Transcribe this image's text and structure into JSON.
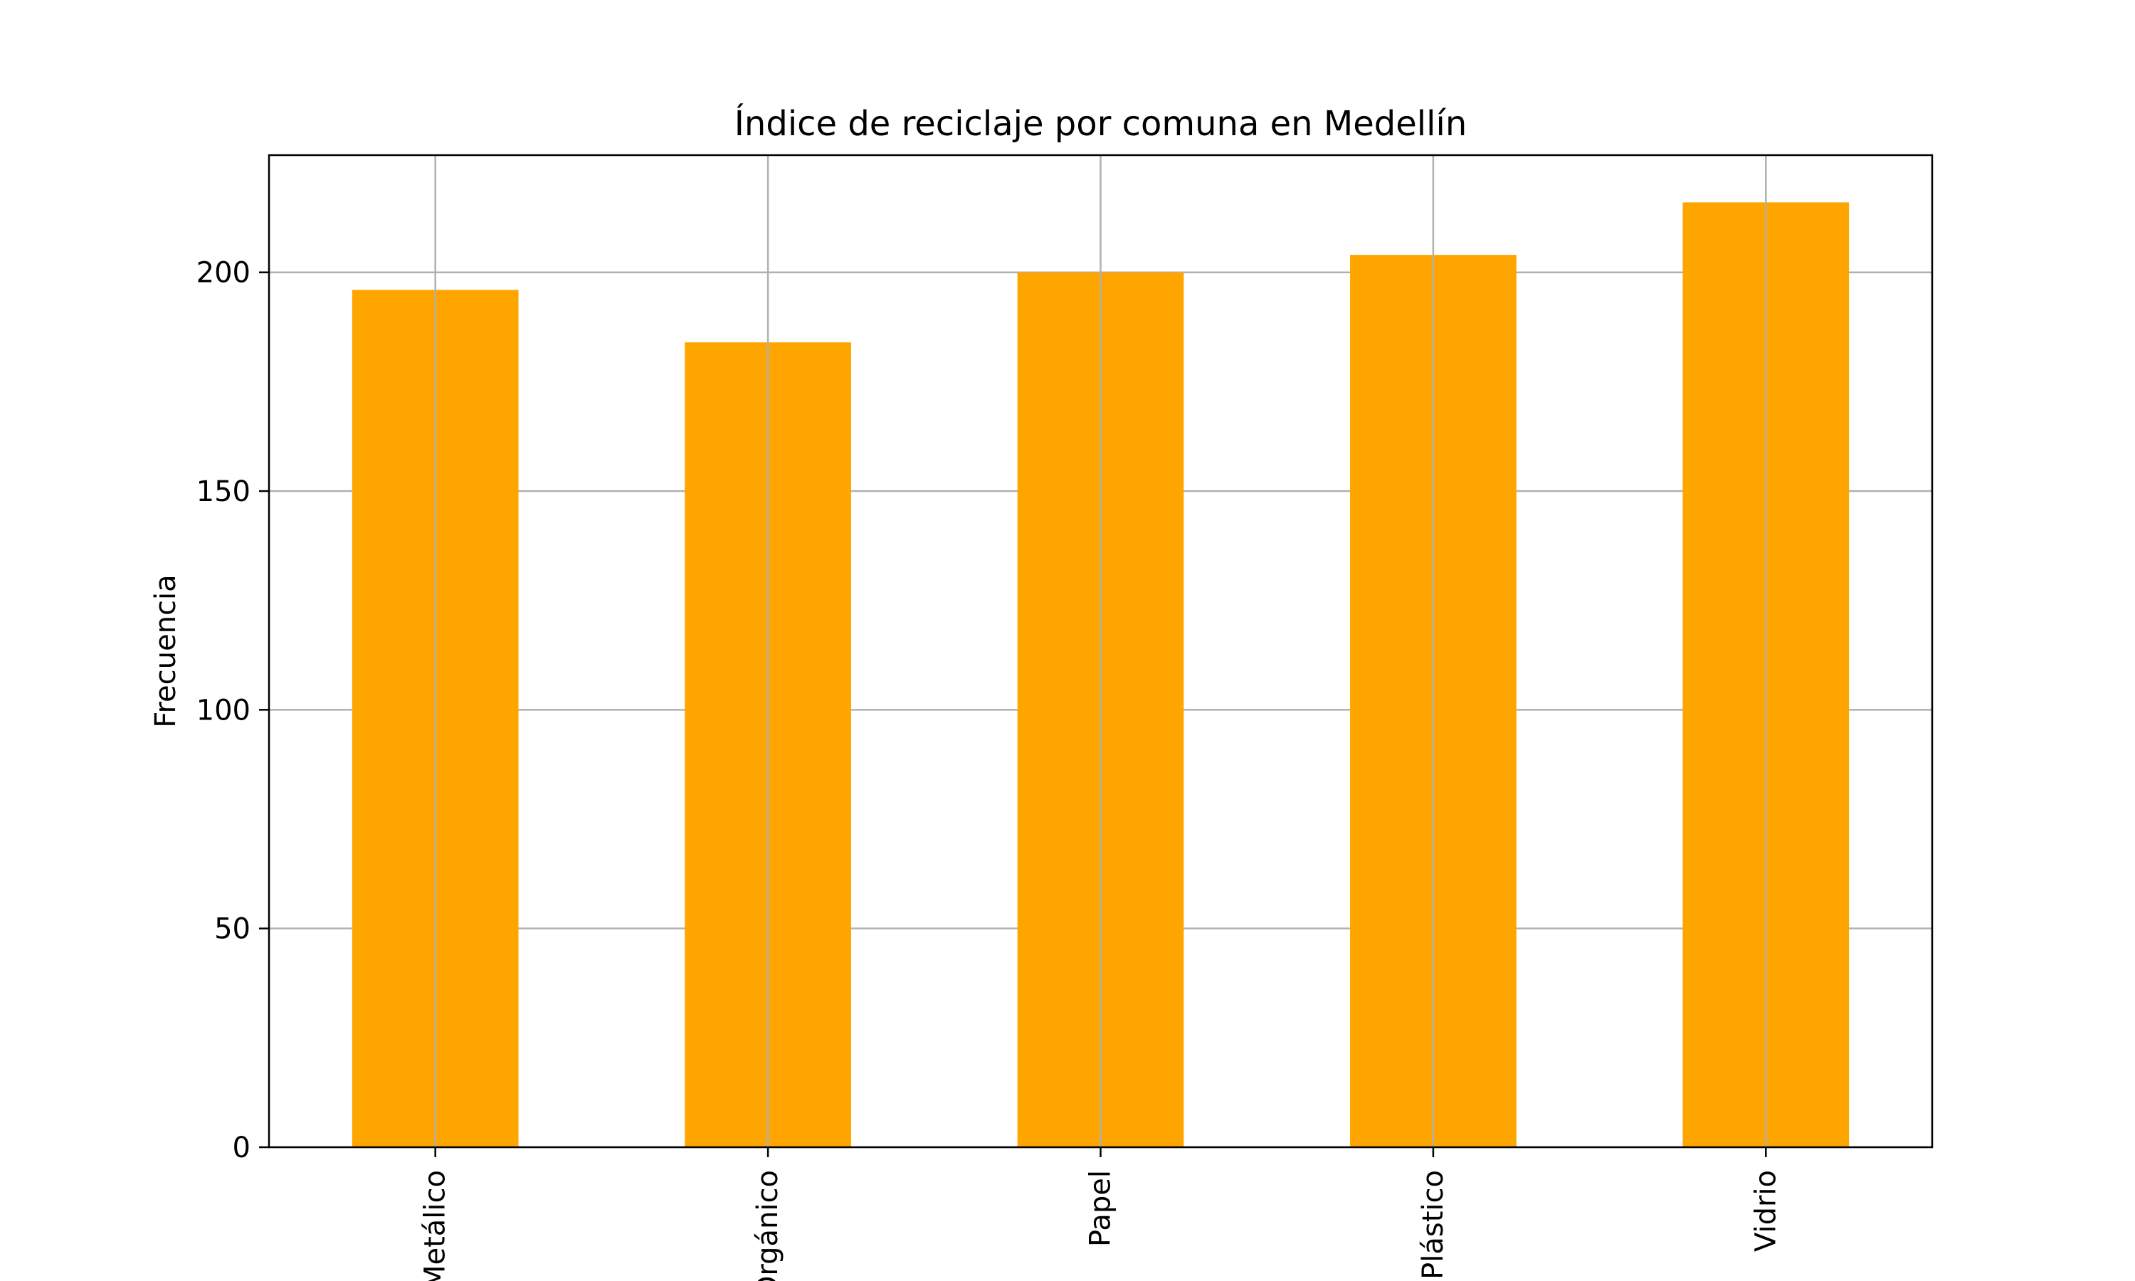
{
  "chart_data": {
    "type": "bar",
    "title": "Índice de reciclaje por comuna en Medellín",
    "xlabel": "",
    "ylabel": "Frecuencia",
    "categories": [
      "Metálico",
      "Orgánico",
      "Papel",
      "Plástico",
      "Vidrio"
    ],
    "values": [
      196,
      184,
      200,
      204,
      216
    ],
    "ylim": [
      0,
      226.8
    ],
    "yticks": [
      0,
      50,
      100,
      150,
      200
    ],
    "grid": true,
    "legend": "none",
    "bar_color": "#FFA500",
    "grid_color": "#b0b0b0"
  }
}
